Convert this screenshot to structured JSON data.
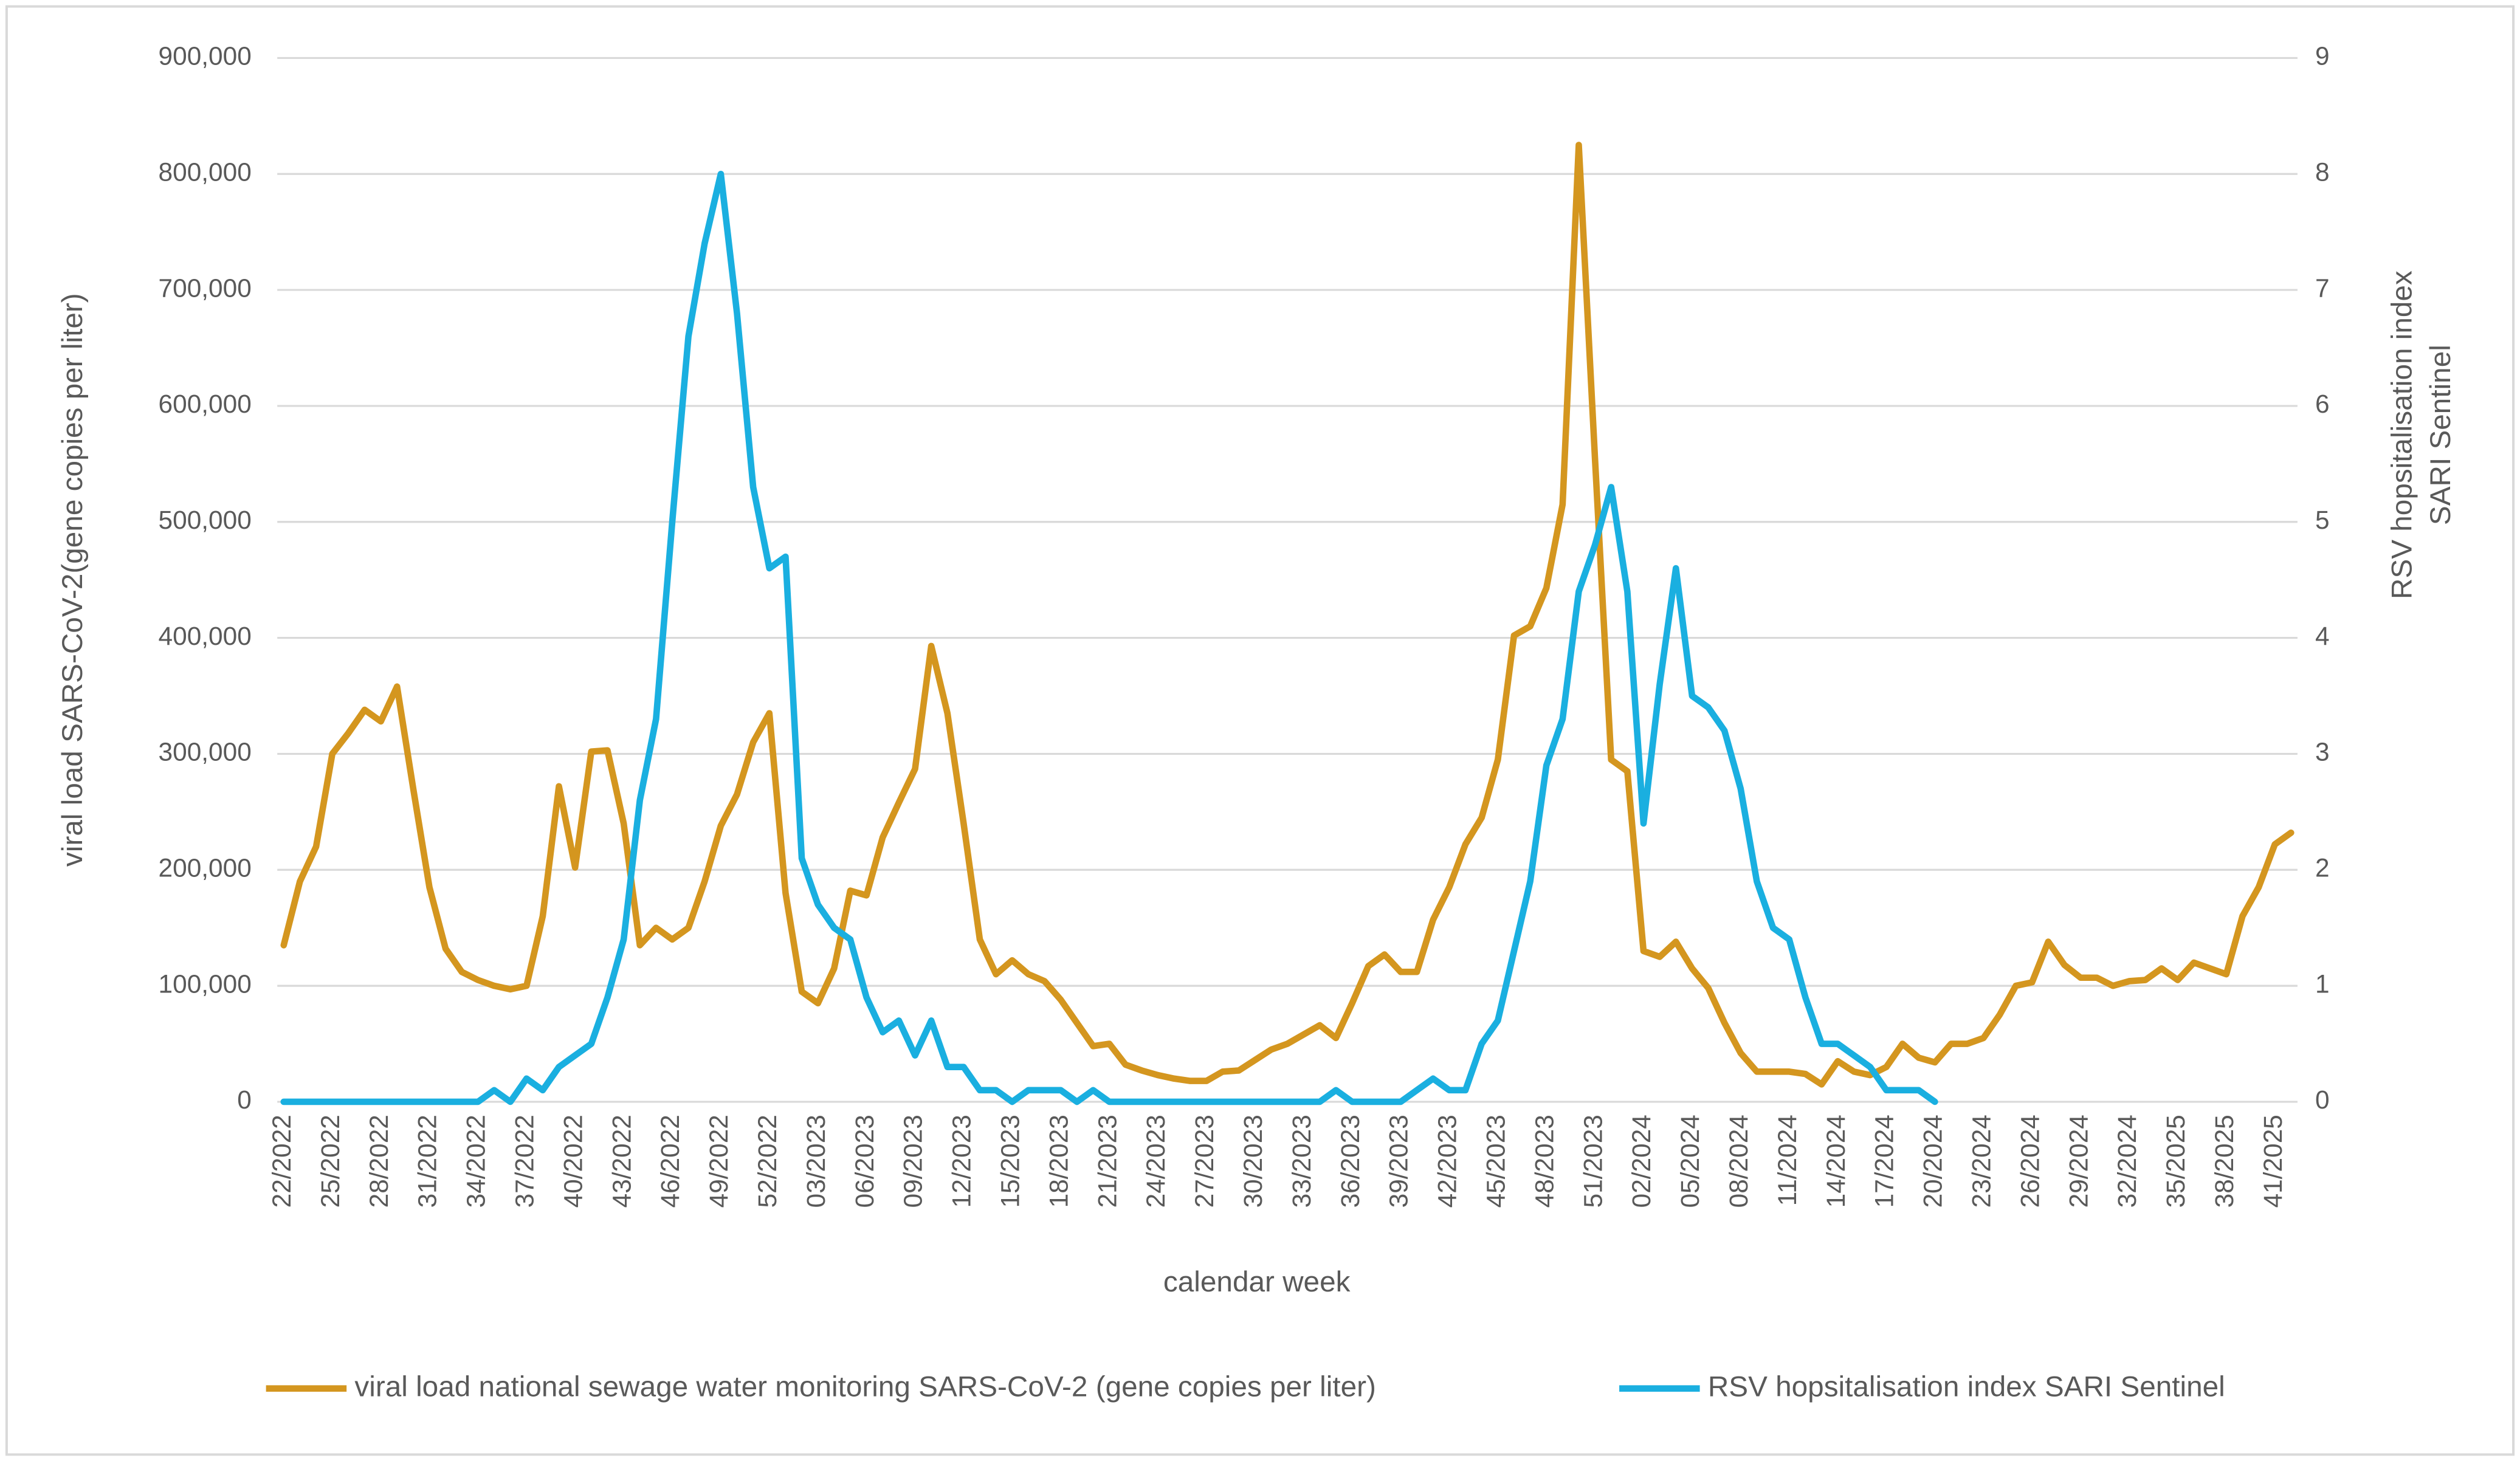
{
  "chart_data": {
    "type": "line",
    "x_label": "calendar week",
    "y_label": "viral load SARS-CoV-2(gene copies per liter)",
    "y2_label": [
      "RSV hopsitalisation index",
      "SARI Sentinel"
    ],
    "categories": [
      "22/2022",
      null,
      null,
      "25/2022",
      null,
      null,
      "28/2022",
      null,
      null,
      "31/2022",
      null,
      null,
      "34/2022",
      null,
      null,
      "37/2022",
      null,
      null,
      "40/2022",
      null,
      null,
      "43/2022",
      null,
      null,
      "46/2022",
      null,
      null,
      "49/2022",
      null,
      null,
      "52/2022",
      null,
      null,
      "03/2023",
      null,
      null,
      "06/2023",
      null,
      null,
      "09/2023",
      null,
      null,
      "12/2023",
      null,
      null,
      "15/2023",
      null,
      null,
      "18/2023",
      null,
      null,
      "21/2023",
      null,
      null,
      "24/2023",
      null,
      null,
      "27/2023",
      null,
      null,
      "30/2023",
      null,
      null,
      "33/2023",
      null,
      null,
      "36/2023",
      null,
      null,
      "39/2023",
      null,
      null,
      "42/2023",
      null,
      null,
      "45/2023",
      null,
      null,
      "48/2023",
      null,
      null,
      "51/2023",
      null,
      null,
      "02/2024",
      null,
      null,
      "05/2024",
      null,
      null,
      "08/2024",
      null,
      null,
      "11/2024",
      null,
      null,
      "14/2024",
      null,
      null,
      "17/2024",
      null,
      null,
      "20/2024",
      null,
      null,
      "23/2024",
      null,
      null,
      "26/2024",
      null,
      null,
      "29/2024",
      null,
      null,
      "32/2024",
      null,
      null,
      "35/2025",
      null,
      null,
      "38/2025",
      null,
      null,
      "41/2025",
      null
    ],
    "series": [
      {
        "name": "viral load national sewage water monitoring SARS-CoV-2 (gene copies per liter)",
        "color": "#D4961F",
        "axis": "y",
        "values": [
          135000,
          190000,
          220000,
          300000,
          318000,
          338000,
          328000,
          358000,
          270000,
          185000,
          132000,
          112000,
          105000,
          100000,
          97000,
          100000,
          160000,
          272000,
          202000,
          302000,
          303000,
          240000,
          135000,
          150000,
          140000,
          150000,
          190000,
          238000,
          265000,
          310000,
          335000,
          180000,
          95000,
          85000,
          115000,
          182000,
          178000,
          228000,
          258000,
          287000,
          393000,
          335000,
          240000,
          140000,
          110000,
          122000,
          110000,
          104000,
          88000,
          68000,
          48000,
          50000,
          32000,
          27000,
          23000,
          20000,
          18000,
          18000,
          26000,
          27000,
          36000,
          45000,
          50000,
          58000,
          66000,
          55000,
          85000,
          117000,
          127000,
          112000,
          112000,
          157000,
          185000,
          222000,
          245000,
          295000,
          402000,
          410000,
          443000,
          515000,
          825000,
          555000,
          295000,
          285000,
          130000,
          125000,
          138000,
          115000,
          98000,
          68000,
          42000,
          26000,
          26000,
          26000,
          24000,
          15000,
          35000,
          26000,
          23000,
          30000,
          50000,
          38000,
          34000,
          50000,
          50000,
          55000,
          75000,
          100000,
          103000,
          138000,
          118000,
          107000,
          107000,
          100000,
          104000,
          105000,
          115000,
          105000,
          120000,
          115000,
          110000,
          160000,
          185000,
          222000,
          232000
        ]
      },
      {
        "name": "RSV hopsitalisation index SARI Sentinel",
        "color": "#1AAFE0",
        "axis": "y2",
        "values": [
          0,
          0,
          0,
          0,
          0,
          0,
          0,
          0,
          0,
          0,
          0,
          0,
          0,
          0.1,
          0,
          0.2,
          0.1,
          0.3,
          0.4,
          0.5,
          0.9,
          1.4,
          2.6,
          3.3,
          5.0,
          6.6,
          7.4,
          8.0,
          6.8,
          5.3,
          4.6,
          4.7,
          2.1,
          1.7,
          1.5,
          1.4,
          0.9,
          0.6,
          0.7,
          0.4,
          0.7,
          0.3,
          0.3,
          0.1,
          0.1,
          0,
          0.1,
          0.1,
          0.1,
          0,
          0.1,
          0,
          0,
          0,
          0,
          0,
          0,
          0,
          0,
          0,
          0,
          0,
          0,
          0,
          0,
          0.1,
          0,
          0,
          0,
          0,
          0.1,
          0.2,
          0.1,
          0.1,
          0.5,
          0.7,
          1.3,
          1.9,
          2.9,
          3.3,
          4.4,
          4.8,
          5.3,
          4.4,
          2.4,
          3.6,
          4.6,
          3.5,
          3.4,
          3.2,
          2.7,
          1.9,
          1.5,
          1.4,
          0.9,
          0.5,
          0.5,
          0.4,
          0.3,
          0.1,
          0.1,
          0.1,
          0,
          null,
          null,
          null,
          null,
          null,
          null,
          null,
          null,
          null,
          null,
          null,
          null,
          null,
          null,
          null,
          null,
          null,
          null,
          null,
          null,
          null,
          null
        ]
      }
    ],
    "ylim": [
      0,
      900000
    ],
    "yticks": [
      0,
      {
        "value": 100000,
        "label": "100,000"
      },
      {
        "value": 200000,
        "label": "200,000"
      },
      {
        "value": 300000,
        "label": "300,000"
      },
      {
        "value": 400000,
        "label": "400,000"
      },
      {
        "value": 500000,
        "label": "500,000"
      },
      {
        "value": 600000,
        "label": "600,000"
      },
      {
        "value": 700000,
        "label": "700,000"
      },
      {
        "value": 800000,
        "label": "800,000"
      },
      {
        "value": 900000,
        "label": "900,000"
      }
    ],
    "y2lim": [
      0,
      9
    ],
    "y2ticks": [
      0,
      1,
      2,
      3,
      4,
      5,
      6,
      7,
      8,
      9
    ],
    "grid": true,
    "legend": "bottom"
  }
}
